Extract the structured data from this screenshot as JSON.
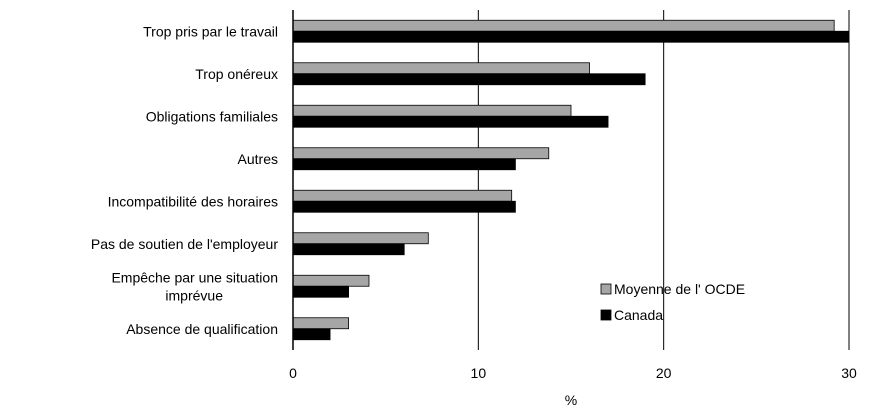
{
  "chart_data": {
    "type": "bar",
    "orientation": "horizontal",
    "categories": [
      "Trop pris par le travail",
      "Trop onéreux",
      "Obligations familiales",
      "Autres",
      "Incompatibilité des horaires",
      "Pas de soutien de l'employeur",
      "Empêche par une situation imprévue",
      "Absence de qualification"
    ],
    "series": [
      {
        "name": "Moyenne de l' OCDE",
        "color": "#a6a6a6",
        "values": [
          29.2,
          16.0,
          15.0,
          13.8,
          11.8,
          7.3,
          4.1,
          3.0
        ]
      },
      {
        "name": "Canada",
        "color": "#000000",
        "values": [
          30.0,
          19.0,
          17.0,
          12.0,
          12.0,
          6.0,
          3.0,
          2.0
        ]
      }
    ],
    "xlabel": "%",
    "xlim": [
      0,
      30
    ],
    "xticks": [
      0,
      10,
      20,
      30
    ],
    "grid": "vertical",
    "legend": "bottom-right"
  }
}
